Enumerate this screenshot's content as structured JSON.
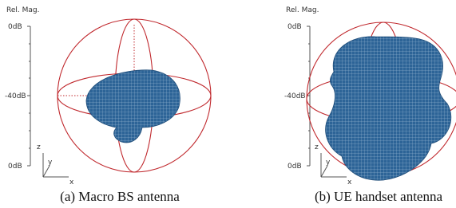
{
  "panels": [
    {
      "scale": {
        "title": "Rel. Mag.",
        "ticks": [
          "0dB",
          "-40dB",
          "0dB"
        ]
      },
      "axes": [
        "z",
        "y",
        "x"
      ],
      "caption": "(a) Macro BS antenna"
    },
    {
      "scale": {
        "title": "Rel. Mag.",
        "ticks": [
          "0dB",
          "-40dB",
          "0dB"
        ]
      },
      "axes": [
        "z",
        "y",
        "x"
      ],
      "caption": "(b) UE handset antenna"
    }
  ]
}
